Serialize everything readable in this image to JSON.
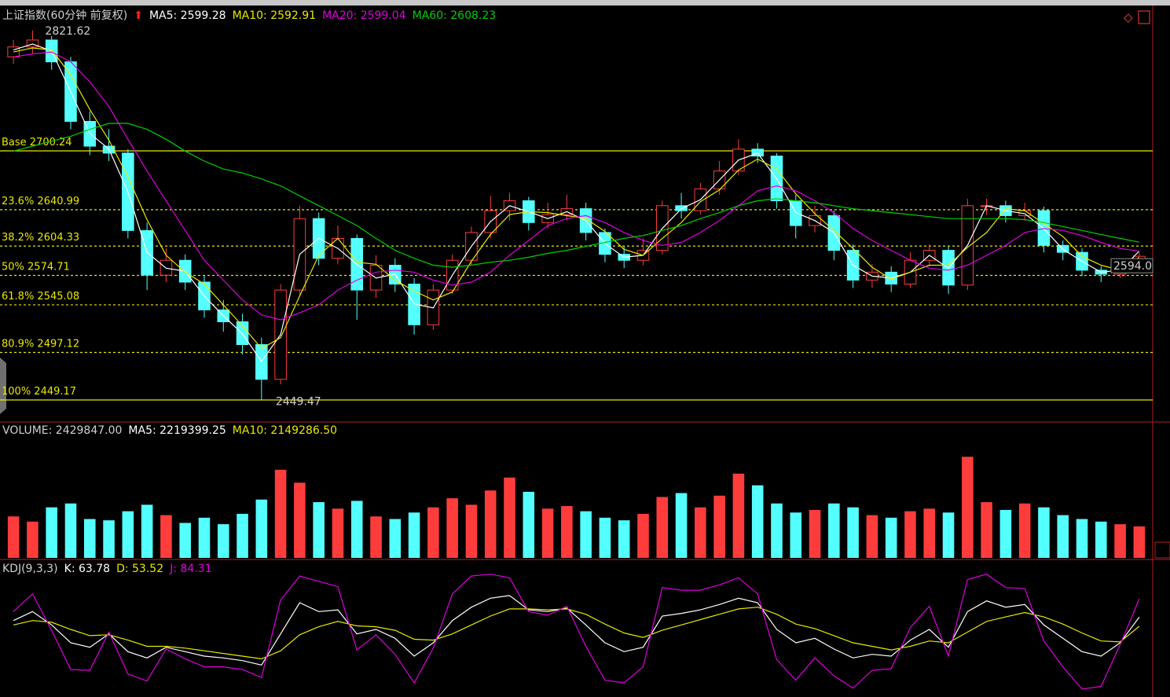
{
  "chart_data": [
    {
      "type": "candlestick",
      "title": "上证指数(60分钟 前复权)",
      "up_color": "#ff3c3c",
      "down_color": "#54ffff",
      "ylim": [
        2428.6,
        2846
      ],
      "open": [
        2795,
        2805,
        2812,
        2790,
        2730,
        2705,
        2698,
        2620,
        2575,
        2590,
        2568,
        2540,
        2528,
        2505,
        2470,
        2560,
        2632,
        2592,
        2612,
        2560,
        2585,
        2566,
        2525,
        2560,
        2590,
        2618,
        2640,
        2650,
        2628,
        2636,
        2642,
        2618,
        2596,
        2590,
        2600,
        2645,
        2640,
        2662,
        2680,
        2702,
        2695,
        2650,
        2625,
        2635,
        2600,
        2570,
        2578,
        2566,
        2590,
        2600,
        2565,
        2645,
        2645,
        2635,
        2640,
        2605,
        2598,
        2580,
        2576,
        2585
      ],
      "high": [
        2812,
        2821.62,
        2816,
        2795,
        2740,
        2722,
        2702,
        2628,
        2602,
        2596,
        2575,
        2550,
        2536,
        2512,
        2566,
        2645,
        2638,
        2625,
        2616,
        2595,
        2592,
        2572,
        2566,
        2596,
        2624,
        2655,
        2658,
        2654,
        2648,
        2656,
        2648,
        2622,
        2604,
        2612,
        2650,
        2658,
        2668,
        2690,
        2712,
        2708,
        2698,
        2656,
        2645,
        2640,
        2606,
        2586,
        2584,
        2598,
        2606,
        2604,
        2652,
        2652,
        2650,
        2648,
        2644,
        2610,
        2602,
        2584,
        2590,
        2598
      ],
      "low": [
        2788,
        2798,
        2782,
        2722,
        2696,
        2690,
        2612,
        2560,
        2568,
        2560,
        2532,
        2518,
        2495,
        2449.47,
        2465,
        2555,
        2585,
        2586,
        2530,
        2552,
        2558,
        2515,
        2520,
        2556,
        2585,
        2612,
        2630,
        2620,
        2622,
        2630,
        2610,
        2588,
        2582,
        2585,
        2596,
        2632,
        2636,
        2656,
        2676,
        2688,
        2642,
        2612,
        2618,
        2590,
        2562,
        2562,
        2558,
        2562,
        2584,
        2556,
        2560,
        2636,
        2628,
        2630,
        2598,
        2590,
        2574,
        2568,
        2572,
        2580
      ],
      "close": [
        2805,
        2812,
        2790,
        2730,
        2705,
        2698,
        2620,
        2575,
        2590,
        2568,
        2540,
        2528,
        2505,
        2470,
        2560,
        2632,
        2592,
        2612,
        2560,
        2585,
        2566,
        2525,
        2560,
        2590,
        2618,
        2640,
        2650,
        2628,
        2636,
        2642,
        2618,
        2596,
        2590,
        2600,
        2645,
        2640,
        2662,
        2680,
        2702,
        2695,
        2650,
        2625,
        2635,
        2600,
        2570,
        2578,
        2566,
        2590,
        2600,
        2565,
        2645,
        2645,
        2635,
        2640,
        2605,
        2598,
        2580,
        2576,
        2585,
        2594
      ],
      "series": [
        {
          "name": "MA5: 2599.28",
          "color": "#ffffff",
          "values": [
            2802,
            2808,
            2801,
            2760,
            2718,
            2702,
            2659,
            2598,
            2582,
            2579,
            2554,
            2534,
            2516,
            2488,
            2515,
            2596,
            2612,
            2602,
            2586,
            2572,
            2576,
            2546,
            2542,
            2575,
            2604,
            2629,
            2645,
            2639,
            2632,
            2639,
            2630,
            2607,
            2593,
            2595,
            2622,
            2642,
            2651,
            2671,
            2691,
            2698,
            2672,
            2638,
            2630,
            2618,
            2585,
            2574,
            2572,
            2578,
            2595,
            2582,
            2605,
            2645,
            2640,
            2637,
            2622,
            2601,
            2589,
            2578,
            2580,
            2599.28
          ]
        },
        {
          "name": "MA10: 2592.91",
          "color": "#e8e800",
          "values": [
            2800,
            2804,
            2802,
            2777,
            2742,
            2711,
            2674,
            2631,
            2595,
            2578,
            2566,
            2545,
            2524,
            2501,
            2512,
            2554,
            2595,
            2612,
            2588,
            2586,
            2570,
            2559,
            2550,
            2558,
            2589,
            2616,
            2636,
            2639,
            2638,
            2635,
            2632,
            2619,
            2601,
            2595,
            2612,
            2628,
            2649,
            2661,
            2681,
            2692,
            2682,
            2657,
            2637,
            2620,
            2602,
            2583,
            2571,
            2578,
            2585,
            2585,
            2603,
            2618,
            2642,
            2640,
            2627,
            2614,
            2594,
            2585,
            2580,
            2592.91
          ]
        },
        {
          "name": "MA20: 2599.04",
          "color": "#e000e0",
          "values": [
            2795,
            2798,
            2800,
            2790,
            2770,
            2745,
            2712,
            2680,
            2650,
            2620,
            2590,
            2570,
            2550,
            2535,
            2530,
            2537,
            2545,
            2560,
            2570,
            2578,
            2580,
            2578,
            2570,
            2565,
            2568,
            2578,
            2595,
            2610,
            2625,
            2632,
            2635,
            2628,
            2618,
            2610,
            2605,
            2608,
            2618,
            2630,
            2645,
            2660,
            2665,
            2660,
            2650,
            2638,
            2622,
            2610,
            2600,
            2590,
            2582,
            2580,
            2585,
            2595,
            2605,
            2618,
            2622,
            2620,
            2615,
            2608,
            2602,
            2599.04
          ]
        },
        {
          "name": "MA60: 2608.23",
          "color": "#00d000",
          "values": [
            2700,
            2705,
            2710,
            2715,
            2722,
            2728,
            2728,
            2722,
            2712,
            2700,
            2690,
            2682,
            2678,
            2672,
            2665,
            2655,
            2645,
            2635,
            2625,
            2612,
            2600,
            2592,
            2585,
            2583,
            2585,
            2588,
            2590,
            2593,
            2597,
            2600,
            2604,
            2608,
            2612,
            2615,
            2620,
            2625,
            2632,
            2638,
            2645,
            2650,
            2652,
            2650,
            2648,
            2645,
            2642,
            2640,
            2638,
            2636,
            2634,
            2632,
            2632,
            2632,
            2632,
            2631,
            2628,
            2624,
            2620,
            2616,
            2612,
            2608.23
          ]
        }
      ],
      "levels": [
        {
          "label": "Base 2700.24",
          "value": 2700.24,
          "dashed": false
        },
        {
          "label": "23.6% 2640.99",
          "value": 2640.99,
          "dashed": true
        },
        {
          "label": "38.2% 2604.33",
          "value": 2604.33,
          "dashed": true
        },
        {
          "label": "50% 2574.71",
          "value": 2574.71,
          "dashed": true
        },
        {
          "label": "61.8% 2545.08",
          "value": 2545.08,
          "dashed": true
        },
        {
          "label": "80.9% 2497.12",
          "value": 2497.12,
          "dashed": true
        },
        {
          "label": "100% 2449.17",
          "value": 2449.17,
          "dashed": false
        }
      ],
      "level_color": "#e8e800",
      "last_price_label": "2594.0"
    },
    {
      "type": "bar",
      "title": "VOLUME: 2429847.00",
      "legend": [
        {
          "name": "MA5: 2219399.25",
          "color": "#ffffff"
        },
        {
          "name": "MA10: 2149286.50",
          "color": "#e8e800"
        }
      ],
      "ylim": [
        0,
        10000000
      ],
      "values": [
        3200000,
        2800000,
        3900000,
        4200000,
        3000000,
        2900000,
        3600000,
        4100000,
        3300000,
        2700000,
        3100000,
        2600000,
        3400000,
        4500000,
        6800000,
        5800000,
        4300000,
        3800000,
        4400000,
        3200000,
        3000000,
        3500000,
        3900000,
        4600000,
        4100000,
        5200000,
        6200000,
        5100000,
        3800000,
        4000000,
        3600000,
        3100000,
        2900000,
        3400000,
        4700000,
        5000000,
        3900000,
        4800000,
        6500000,
        5600000,
        4200000,
        3500000,
        3700000,
        4200000,
        3900000,
        3300000,
        3100000,
        3600000,
        3800000,
        3500000,
        7800000,
        4300000,
        3700000,
        4200000,
        3900000,
        3300000,
        3000000,
        2800000,
        2600000,
        2429847
      ]
    },
    {
      "type": "line",
      "title": "KDJ(9,3,3)",
      "ylim": [
        -25,
        125
      ],
      "series": [
        {
          "name": "K: 63.78",
          "color": "#ffffff",
          "values": [
            60,
            70,
            55,
            35,
            30,
            45,
            25,
            18,
            30,
            25,
            20,
            18,
            15,
            10,
            45,
            80,
            70,
            72,
            45,
            50,
            40,
            20,
            35,
            60,
            75,
            85,
            88,
            72,
            70,
            74,
            55,
            35,
            25,
            30,
            65,
            68,
            72,
            78,
            85,
            80,
            50,
            35,
            40,
            28,
            18,
            22,
            20,
            38,
            50,
            30,
            70,
            82,
            75,
            78,
            55,
            40,
            25,
            20,
            35,
            63.78
          ]
        },
        {
          "name": "D: 53.52",
          "color": "#e8e800",
          "values": [
            55,
            60,
            58,
            50,
            43,
            44,
            38,
            31,
            31,
            29,
            26,
            23,
            20,
            17,
            26,
            44,
            53,
            59,
            54,
            53,
            49,
            39,
            38,
            45,
            55,
            65,
            73,
            73,
            72,
            73,
            67,
            56,
            46,
            41,
            49,
            55,
            61,
            67,
            73,
            75,
            67,
            56,
            51,
            43,
            35,
            31,
            27,
            31,
            37,
            35,
            47,
            59,
            64,
            69,
            64,
            56,
            46,
            37,
            36,
            53.52
          ]
        },
        {
          "name": "J: 84.31",
          "color": "#e000e0",
          "values": [
            70,
            90,
            49,
            5,
            4,
            47,
            0,
            -8,
            28,
            17,
            8,
            8,
            5,
            -4,
            83,
            110,
            104,
            98,
            27,
            44,
            22,
            -10,
            29,
            90,
            110,
            112,
            108,
            70,
            66,
            76,
            31,
            -7,
            -10,
            8,
            97,
            94,
            94,
            100,
            108,
            90,
            16,
            -7,
            18,
            -2,
            -16,
            4,
            6,
            52,
            76,
            20,
            106,
            112,
            97,
            96,
            37,
            8,
            -17,
            -14,
            33,
            84.31
          ]
        }
      ]
    }
  ]
}
